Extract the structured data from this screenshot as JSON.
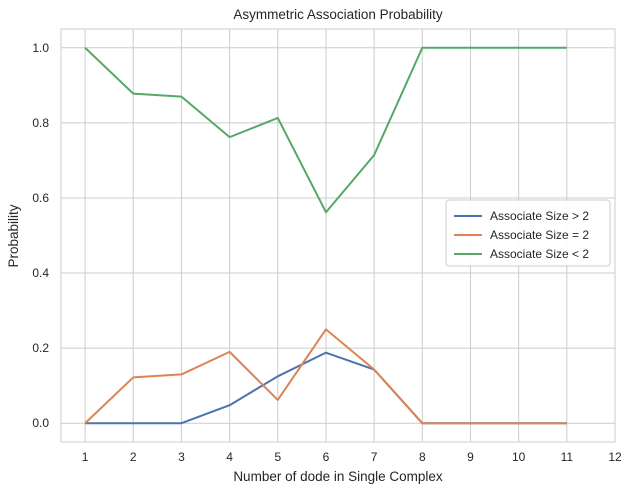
{
  "chart_data": {
    "type": "line",
    "title": "Asymmetric Association Probability",
    "xlabel": "Number of dode in Single Complex",
    "ylabel": "Probability",
    "xlim": [
      0.5,
      12
    ],
    "ylim": [
      -0.05,
      1.05
    ],
    "xticks": [
      1,
      2,
      3,
      4,
      5,
      6,
      7,
      8,
      9,
      10,
      11,
      12
    ],
    "yticks": [
      "0.0",
      "0.2",
      "0.4",
      "0.6",
      "0.8",
      "1.0"
    ],
    "grid": true,
    "legend_position": "center-right",
    "x": [
      1,
      2,
      3,
      4,
      5,
      6,
      7,
      8,
      9,
      10,
      11
    ],
    "series": [
      {
        "name": "Associate Size > 2",
        "color": "#4c72b0",
        "values": [
          0.0,
          0.0,
          0.0,
          0.048,
          0.125,
          0.188,
          0.143,
          0.0,
          0.0,
          0.0,
          0.0
        ]
      },
      {
        "name": "Associate Size = 2",
        "color": "#dd8452",
        "values": [
          0.0,
          0.122,
          0.13,
          0.19,
          0.062,
          0.25,
          0.143,
          0.0,
          0.0,
          0.0,
          0.0
        ]
      },
      {
        "name": "Associate Size < 2",
        "color": "#55a868",
        "values": [
          1.0,
          0.878,
          0.87,
          0.762,
          0.813,
          0.562,
          0.714,
          1.0,
          1.0,
          1.0,
          1.0
        ]
      }
    ]
  }
}
